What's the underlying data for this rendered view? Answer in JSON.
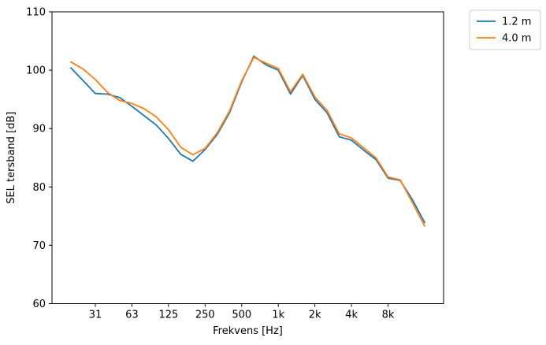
{
  "figure": {
    "background": "#ffffff"
  },
  "chart_data": {
    "type": "line",
    "title": "",
    "xlabel": "Frekvens [Hz]",
    "ylabel": "SEL tersband [dB]",
    "x_scale": "log-frequency (third-octave bands, evenly spaced)",
    "ylim": [
      60,
      110
    ],
    "yticks": [
      60,
      70,
      80,
      90,
      100,
      110
    ],
    "xtick_labels": [
      "31",
      "63",
      "125",
      "250",
      "500",
      "1k",
      "2k",
      "4k",
      "8k"
    ],
    "xtick_band_indices": [
      2,
      5,
      8,
      11,
      14,
      17,
      20,
      23,
      26
    ],
    "grid": false,
    "legend": {
      "position": "outside-upper-right",
      "entries": [
        "1.2 m",
        "4.0 m"
      ]
    },
    "frequencies_hz": [
      20,
      25,
      31.5,
      40,
      50,
      63,
      80,
      100,
      125,
      160,
      200,
      250,
      315,
      400,
      500,
      630,
      800,
      1000,
      1250,
      1600,
      2000,
      2500,
      3150,
      4000,
      5000,
      6300,
      8000,
      10000,
      12500,
      16000
    ],
    "series": [
      {
        "name": "1.2 m",
        "color": "#1f77b4",
        "values": [
          100.4,
          98.2,
          96.0,
          95.9,
          95.3,
          93.8,
          92.2,
          90.6,
          88.3,
          85.6,
          84.4,
          86.4,
          89.0,
          92.7,
          98.0,
          102.4,
          100.9,
          100.0,
          95.9,
          99.1,
          95.0,
          92.7,
          88.6,
          88.0,
          86.3,
          84.7,
          81.5,
          81.1,
          77.8,
          73.9
        ]
      },
      {
        "name": "4.0 m",
        "color": "#ff7f0e",
        "values": [
          101.4,
          100.2,
          98.4,
          96.2,
          94.8,
          94.3,
          93.4,
          92.0,
          89.8,
          86.8,
          85.5,
          86.6,
          89.3,
          93.0,
          98.2,
          102.2,
          101.2,
          100.3,
          96.3,
          99.3,
          95.4,
          93.1,
          89.1,
          88.4,
          86.7,
          85.0,
          81.7,
          81.2,
          77.3,
          73.3
        ]
      }
    ]
  }
}
